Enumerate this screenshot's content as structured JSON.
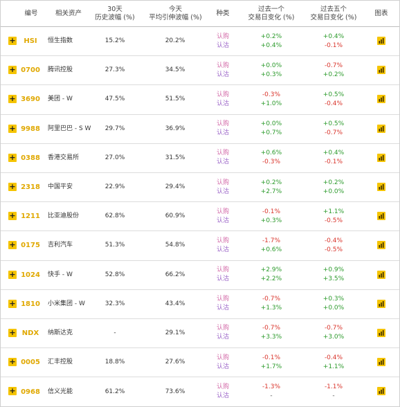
{
  "header": {
    "code": "编号",
    "asset": "相关资产",
    "hv_line1": "30天",
    "hv_line2": "历史波幅 (%)",
    "iv_line1": "今天",
    "iv_line2": "平均引伸波幅 (%)",
    "type": "种类",
    "d1_line1": "过去一个",
    "d1_line2": "交易日变化 (%)",
    "d5_line1": "过去五个",
    "d5_line2": "交易日变化 (%)",
    "chart": "图表"
  },
  "icons": {
    "expand": "plus-icon",
    "chart": "bar-chart-icon"
  },
  "colors": {
    "accent": "#f5c400",
    "positive": "#2b9a2b",
    "negative": "#d9342b",
    "call": "#d36aa8",
    "put": "#9a62c7"
  },
  "rows": [
    {
      "code": "HSI",
      "asset": "恒生指数",
      "hv": "15.2%",
      "iv": "20.2%",
      "call": "认购",
      "put": "认沽",
      "d1_call": "+0.2%",
      "d1_put": "+0.4%",
      "d5_call": "+0.4%",
      "d5_put": "-0.1%"
    },
    {
      "code": "0700",
      "asset": "腾讯控股",
      "hv": "27.3%",
      "iv": "34.5%",
      "call": "认购",
      "put": "认沽",
      "d1_call": "+0.0%",
      "d1_put": "+0.3%",
      "d5_call": "-0.7%",
      "d5_put": "+0.2%"
    },
    {
      "code": "3690",
      "asset": "美团 - W",
      "hv": "47.5%",
      "iv": "51.5%",
      "call": "认购",
      "put": "认沽",
      "d1_call": "-0.3%",
      "d1_put": "+1.0%",
      "d5_call": "+0.5%",
      "d5_put": "-0.4%"
    },
    {
      "code": "9988",
      "asset": "阿里巴巴 - S W",
      "hv": "29.7%",
      "iv": "36.9%",
      "call": "认购",
      "put": "认沽",
      "d1_call": "+0.0%",
      "d1_put": "+0.7%",
      "d5_call": "+0.5%",
      "d5_put": "-0.7%"
    },
    {
      "code": "0388",
      "asset": "香港交易所",
      "hv": "27.0%",
      "iv": "31.5%",
      "call": "认购",
      "put": "认沽",
      "d1_call": "+0.6%",
      "d1_put": "-0.3%",
      "d5_call": "+0.4%",
      "d5_put": "-0.1%"
    },
    {
      "code": "2318",
      "asset": "中国平安",
      "hv": "22.9%",
      "iv": "29.4%",
      "call": "认购",
      "put": "认沽",
      "d1_call": "+0.2%",
      "d1_put": "+2.7%",
      "d5_call": "+0.2%",
      "d5_put": "+0.0%"
    },
    {
      "code": "1211",
      "asset": "比亚迪股份",
      "hv": "62.8%",
      "iv": "60.9%",
      "call": "认购",
      "put": "认沽",
      "d1_call": "-0.1%",
      "d1_put": "+0.3%",
      "d5_call": "+1.1%",
      "d5_put": "-0.5%"
    },
    {
      "code": "0175",
      "asset": "吉利汽车",
      "hv": "51.3%",
      "iv": "54.8%",
      "call": "认购",
      "put": "认沽",
      "d1_call": "-1.7%",
      "d1_put": "+0.6%",
      "d5_call": "-0.4%",
      "d5_put": "-0.5%"
    },
    {
      "code": "1024",
      "asset": "快手 - W",
      "hv": "52.8%",
      "iv": "66.2%",
      "call": "认购",
      "put": "认沽",
      "d1_call": "+2.9%",
      "d1_put": "+2.2%",
      "d5_call": "+0.9%",
      "d5_put": "+3.5%"
    },
    {
      "code": "1810",
      "asset": "小米集团 - W",
      "hv": "32.3%",
      "iv": "43.4%",
      "call": "认购",
      "put": "认沽",
      "d1_call": "-0.7%",
      "d1_put": "+1.3%",
      "d5_call": "+0.3%",
      "d5_put": "+0.0%"
    },
    {
      "code": "NDX",
      "asset": "纳斯达克",
      "hv": "-",
      "iv": "29.1%",
      "call": "认购",
      "put": "认沽",
      "d1_call": "-0.7%",
      "d1_put": "+3.3%",
      "d5_call": "-0.7%",
      "d5_put": "+3.0%"
    },
    {
      "code": "0005",
      "asset": "汇丰控股",
      "hv": "18.8%",
      "iv": "27.6%",
      "call": "认购",
      "put": "认沽",
      "d1_call": "-0.1%",
      "d1_put": "+1.7%",
      "d5_call": "-0.4%",
      "d5_put": "+1.1%"
    },
    {
      "code": "0968",
      "asset": "信义光能",
      "hv": "61.2%",
      "iv": "73.6%",
      "call": "认购",
      "put": "认沽",
      "d1_call": "-1.3%",
      "d1_put": "-",
      "d5_call": "-1.1%",
      "d5_put": "-"
    }
  ]
}
